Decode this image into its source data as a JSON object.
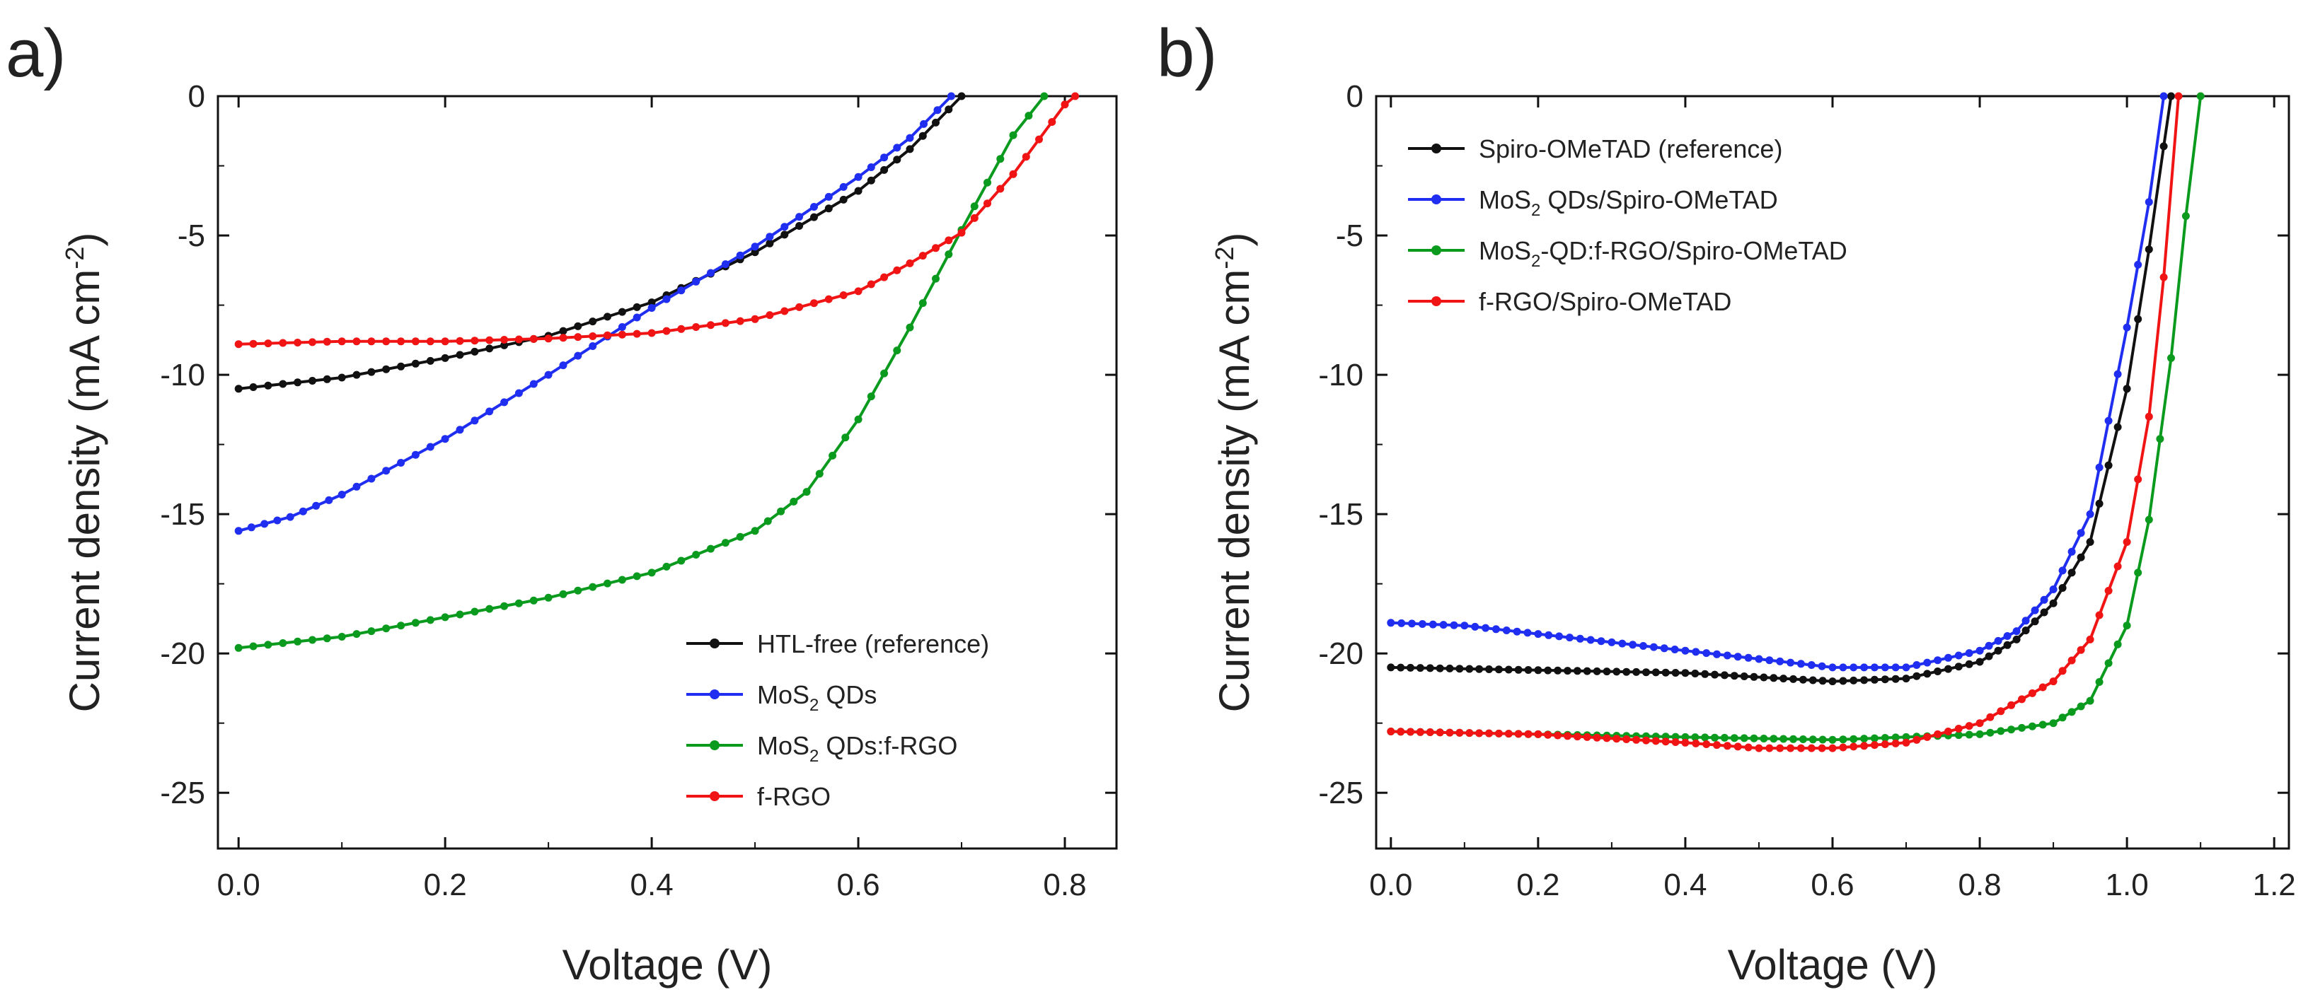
{
  "chart_data": [
    {
      "id": "a",
      "panel_label": "a)",
      "type": "line",
      "xlabel": "Voltage (V)",
      "ylabel": {
        "main": "Current density (mA cm",
        "sup": "-2",
        "close": ")"
      },
      "xlim": [
        -0.02,
        0.85
      ],
      "ylim": [
        -27,
        0
      ],
      "xticks": [
        0.0,
        0.2,
        0.4,
        0.6,
        0.8
      ],
      "xtick_labels": [
        "0.0",
        "0.2",
        "0.4",
        "0.6",
        "0.8"
      ],
      "yticks": [
        0,
        -5,
        -10,
        -15,
        -20,
        -25
      ],
      "ytick_labels": [
        "0",
        "-5",
        "-10",
        "-15",
        "-20",
        "-25"
      ],
      "legend_position": "bottom-right",
      "series": [
        {
          "name": "HTL-free (reference)",
          "label_main": "HTL-free (reference)",
          "color": "#111111",
          "points": [
            [
              0,
              -10.5
            ],
            [
              0.1,
              -10.1
            ],
            [
              0.2,
              -9.4
            ],
            [
              0.3,
              -8.6
            ],
            [
              0.4,
              -7.4
            ],
            [
              0.5,
              -5.6
            ],
            [
              0.6,
              -3.4
            ],
            [
              0.65,
              -1.9
            ],
            [
              0.7,
              0
            ]
          ]
        },
        {
          "name": "MoS2 QDs",
          "label_main": "MoS",
          "label_sub": "2",
          "label_rest": " QDs",
          "color": "#1f2ef0",
          "points": [
            [
              0,
              -15.6
            ],
            [
              0.05,
              -15.1
            ],
            [
              0.1,
              -14.3
            ],
            [
              0.2,
              -12.3
            ],
            [
              0.3,
              -10.0
            ],
            [
              0.4,
              -7.6
            ],
            [
              0.5,
              -5.4
            ],
            [
              0.6,
              -2.9
            ],
            [
              0.65,
              -1.5
            ],
            [
              0.69,
              0
            ]
          ]
        },
        {
          "name": "MoS2 QDs:f-RGO",
          "label_main": "MoS",
          "label_sub": "2",
          "label_rest": " QDs:f-RGO",
          "color": "#0a9a1e",
          "points": [
            [
              0,
              -19.8
            ],
            [
              0.1,
              -19.4
            ],
            [
              0.2,
              -18.7
            ],
            [
              0.3,
              -18.0
            ],
            [
              0.4,
              -17.1
            ],
            [
              0.5,
              -15.6
            ],
            [
              0.55,
              -14.2
            ],
            [
              0.6,
              -11.6
            ],
            [
              0.65,
              -8.3
            ],
            [
              0.7,
              -4.8
            ],
            [
              0.75,
              -1.4
            ],
            [
              0.78,
              0
            ]
          ]
        },
        {
          "name": "f-RGO",
          "label_main": "f-RGO",
          "color": "#f01414",
          "points": [
            [
              0,
              -8.9
            ],
            [
              0.1,
              -8.8
            ],
            [
              0.2,
              -8.8
            ],
            [
              0.3,
              -8.7
            ],
            [
              0.4,
              -8.5
            ],
            [
              0.5,
              -8.0
            ],
            [
              0.6,
              -7.0
            ],
            [
              0.65,
              -6.0
            ],
            [
              0.7,
              -4.9
            ],
            [
              0.75,
              -2.8
            ],
            [
              0.8,
              -0.3
            ],
            [
              0.81,
              0
            ]
          ]
        }
      ]
    },
    {
      "id": "b",
      "panel_label": "b)",
      "type": "line",
      "xlabel": "Voltage (V)",
      "ylabel": {
        "main": "Current density (mA cm",
        "sup": "-2",
        "close": ")"
      },
      "xlim": [
        -0.02,
        1.22
      ],
      "ylim": [
        -27,
        0
      ],
      "xticks": [
        0.0,
        0.2,
        0.4,
        0.6,
        0.8,
        1.0,
        1.2
      ],
      "xtick_labels": [
        "0.0",
        "0.2",
        "0.4",
        "0.6",
        "0.8",
        "1.0",
        "1.2"
      ],
      "yticks": [
        0,
        -5,
        -10,
        -15,
        -20,
        -25
      ],
      "ytick_labels": [
        "0",
        "-5",
        "-10",
        "-15",
        "-20",
        "-25"
      ],
      "legend_position": "top-left",
      "series": [
        {
          "name": "Spiro-OMeTAD (reference)",
          "label_main": "Spiro-OMeTAD (reference)",
          "color": "#111111",
          "points": [
            [
              0,
              -20.5
            ],
            [
              0.2,
              -20.6
            ],
            [
              0.4,
              -20.7
            ],
            [
              0.6,
              -21.0
            ],
            [
              0.7,
              -20.9
            ],
            [
              0.8,
              -20.3
            ],
            [
              0.85,
              -19.5
            ],
            [
              0.9,
              -18.2
            ],
            [
              0.95,
              -16.0
            ],
            [
              1.0,
              -10.5
            ],
            [
              1.03,
              -5.5
            ],
            [
              1.05,
              -1.8
            ],
            [
              1.06,
              0
            ]
          ]
        },
        {
          "name": "MoS2 QDs/Spiro-OMeTAD",
          "label_main": "MoS",
          "label_sub": "2",
          "label_rest": " QDs/Spiro-OMeTAD",
          "color": "#1f2ef0",
          "points": [
            [
              0,
              -18.9
            ],
            [
              0.1,
              -19.0
            ],
            [
              0.2,
              -19.3
            ],
            [
              0.3,
              -19.6
            ],
            [
              0.4,
              -19.9
            ],
            [
              0.5,
              -20.2
            ],
            [
              0.6,
              -20.5
            ],
            [
              0.7,
              -20.5
            ],
            [
              0.8,
              -19.9
            ],
            [
              0.85,
              -19.2
            ],
            [
              0.9,
              -17.7
            ],
            [
              0.95,
              -15.0
            ],
            [
              1.0,
              -8.3
            ],
            [
              1.03,
              -3.8
            ],
            [
              1.05,
              0
            ]
          ]
        },
        {
          "name": "MoS2-QD:f-RGO/Spiro-OMeTAD",
          "label_main": "MoS",
          "label_sub": "2",
          "label_rest": "-QD:f-RGO/Spiro-OMeTAD",
          "color": "#0a9a1e",
          "points": [
            [
              0,
              -22.8
            ],
            [
              0.2,
              -22.9
            ],
            [
              0.4,
              -23.0
            ],
            [
              0.6,
              -23.1
            ],
            [
              0.7,
              -23.0
            ],
            [
              0.8,
              -22.9
            ],
            [
              0.9,
              -22.5
            ],
            [
              0.95,
              -21.7
            ],
            [
              1.0,
              -19.0
            ],
            [
              1.03,
              -15.2
            ],
            [
              1.06,
              -9.4
            ],
            [
              1.08,
              -4.3
            ],
            [
              1.1,
              0
            ]
          ]
        },
        {
          "name": "f-RGO/Spiro-OMeTAD",
          "label_main": "f-RGO/Spiro-OMeTAD",
          "color": "#f01414",
          "points": [
            [
              0,
              -22.8
            ],
            [
              0.2,
              -22.9
            ],
            [
              0.4,
              -23.2
            ],
            [
              0.5,
              -23.4
            ],
            [
              0.6,
              -23.4
            ],
            [
              0.7,
              -23.2
            ],
            [
              0.8,
              -22.5
            ],
            [
              0.9,
              -21.0
            ],
            [
              0.95,
              -19.5
            ],
            [
              1.0,
              -16.0
            ],
            [
              1.03,
              -11.5
            ],
            [
              1.05,
              -6.5
            ],
            [
              1.07,
              0
            ]
          ]
        }
      ]
    }
  ]
}
